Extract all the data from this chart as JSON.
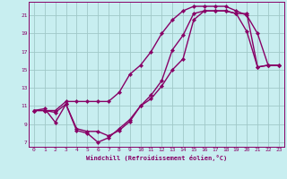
{
  "xlabel": "Windchill (Refroidissement éolien,°C)",
  "bg_color": "#c8eef0",
  "grid_color": "#a0c8c8",
  "line_color": "#880066",
  "xlim": [
    -0.5,
    23.5
  ],
  "ylim": [
    6.5,
    22.5
  ],
  "xticks": [
    0,
    1,
    2,
    3,
    4,
    5,
    6,
    7,
    8,
    9,
    10,
    11,
    12,
    13,
    14,
    15,
    16,
    17,
    18,
    19,
    20,
    21,
    22,
    23
  ],
  "yticks": [
    7,
    9,
    11,
    13,
    15,
    17,
    19,
    21
  ],
  "line1_x": [
    0,
    1,
    2,
    3,
    4,
    5,
    6,
    7,
    8,
    9,
    10,
    11,
    12,
    13,
    14,
    15,
    16,
    17,
    18,
    19,
    20,
    21,
    22,
    23
  ],
  "line1_y": [
    10.5,
    10.5,
    10.3,
    11.2,
    8.3,
    8.0,
    7.0,
    7.5,
    8.5,
    9.5,
    11.0,
    11.8,
    13.2,
    15.0,
    16.2,
    20.5,
    21.5,
    21.5,
    21.5,
    21.2,
    19.2,
    15.3,
    15.5,
    15.5
  ],
  "line2_x": [
    0,
    1,
    2,
    3,
    4,
    5,
    6,
    7,
    8,
    9,
    10,
    11,
    12,
    13,
    14,
    15,
    16,
    17,
    18,
    19,
    20,
    21,
    22,
    23
  ],
  "line2_y": [
    10.5,
    10.7,
    9.2,
    11.2,
    8.5,
    8.2,
    8.2,
    7.7,
    8.3,
    9.3,
    11.0,
    12.2,
    13.8,
    17.2,
    18.8,
    21.2,
    21.5,
    21.5,
    21.5,
    21.2,
    21.2,
    15.3,
    15.5,
    15.5
  ],
  "line3_x": [
    0,
    1,
    2,
    3,
    4,
    5,
    6,
    7,
    8,
    9,
    10,
    11,
    12,
    13,
    14,
    15,
    16,
    17,
    18,
    19,
    20,
    21,
    22,
    23
  ],
  "line3_y": [
    10.5,
    10.5,
    10.5,
    11.5,
    11.5,
    11.5,
    11.5,
    11.5,
    12.5,
    14.5,
    15.5,
    17.0,
    19.0,
    20.5,
    21.5,
    22.0,
    22.0,
    22.0,
    22.0,
    21.5,
    21.0,
    19.0,
    15.5,
    15.5
  ],
  "marker": "D",
  "markersize": 2.2,
  "linewidth": 1.0
}
